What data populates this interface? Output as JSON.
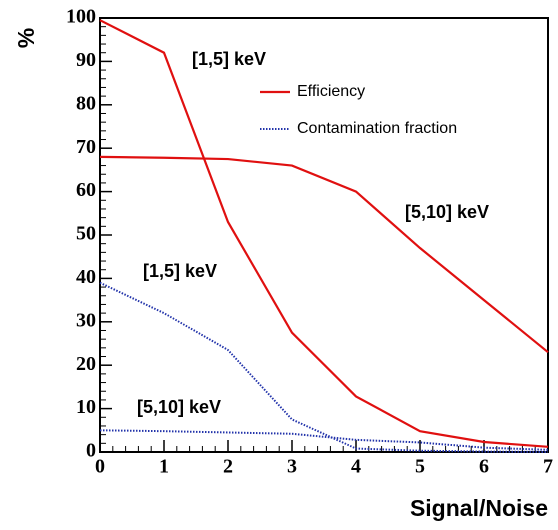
{
  "chart_data": {
    "type": "line",
    "x_label": "Signal/Noise",
    "y_label": "%",
    "x": [
      0,
      1,
      2,
      3,
      4,
      5,
      6,
      7
    ],
    "xlim": [
      0,
      7
    ],
    "xticks": [
      0,
      1,
      2,
      3,
      4,
      5,
      6,
      7
    ],
    "ylim": [
      0,
      100
    ],
    "yticks": [
      0,
      10,
      20,
      30,
      40,
      50,
      60,
      70,
      80,
      90,
      100
    ],
    "series": [
      {
        "name": "Efficiency",
        "color": "#e01010",
        "dotted": false,
        "curves": [
          {
            "label": "[1,5] keV",
            "values": [
              99.5,
              92,
              53,
              27.5,
              12.8,
              4.8,
              2.3,
              1.2
            ]
          },
          {
            "label": "[5,10] keV",
            "values": [
              68,
              67.8,
              67.5,
              66,
              60,
              47,
              35,
              23
            ]
          }
        ]
      },
      {
        "name": "Contamination fraction",
        "color": "#2233aa",
        "dotted": true,
        "curves": [
          {
            "label": "[1,5] keV",
            "values": [
              39,
              32,
              23.5,
              7.5,
              0.8,
              0.3,
              0.1,
              0
            ]
          },
          {
            "label": "[5,10] keV",
            "values": [
              5,
              4.8,
              4.5,
              4.2,
              2.8,
              2.2,
              1,
              0.5
            ]
          }
        ]
      }
    ]
  }
}
